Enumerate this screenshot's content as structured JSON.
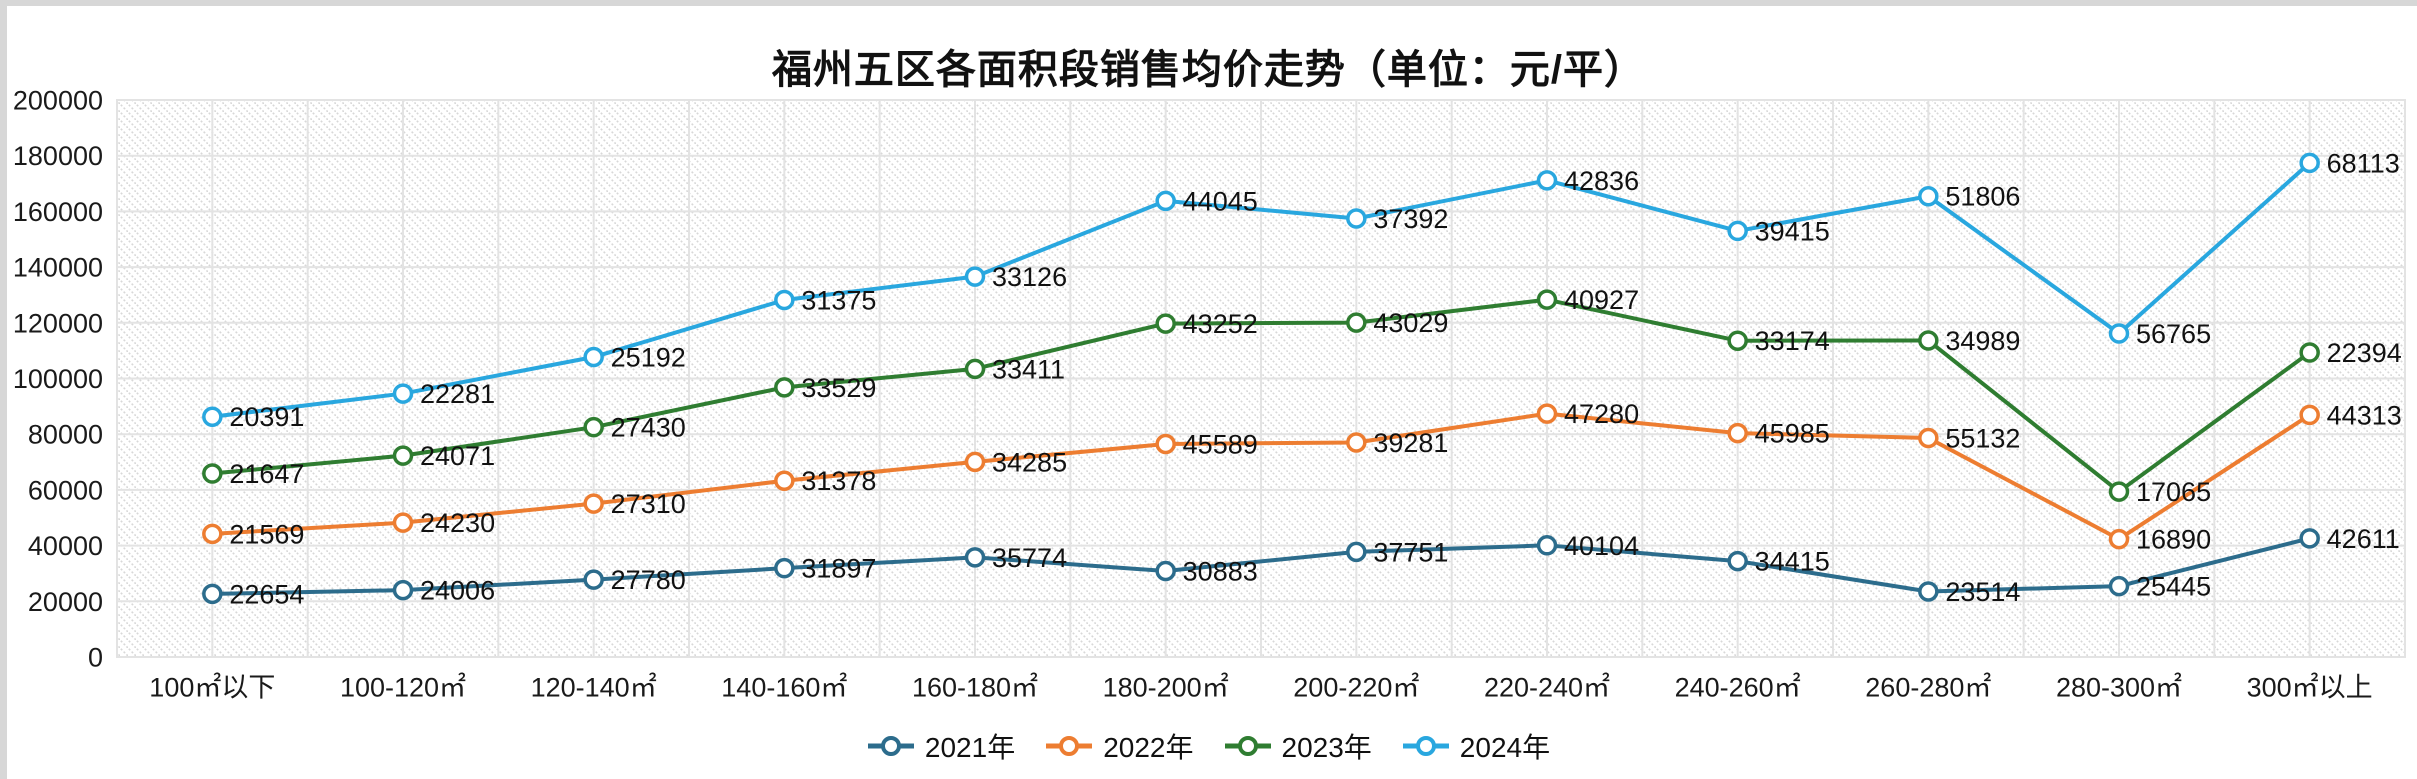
{
  "title": "福州五区各面积段销售均价走势（单位：元/平）",
  "legend": {
    "items": [
      "2021年",
      "2022年",
      "2023年",
      "2024年"
    ]
  },
  "colors": {
    "series_2021": "#2C6C8C",
    "series_2022": "#ED7D31",
    "series_2023": "#2F7D31",
    "series_2024": "#29A7DF",
    "gridline": "#E3E3E3",
    "hatch": "#D8D8D8",
    "axis_text": "#1A1A1A",
    "label_text": "#111111"
  },
  "chart_data": {
    "type": "line",
    "stacked": true,
    "marker": "open-circle",
    "data_labels": true,
    "grid": true,
    "legend_position": "bottom",
    "title": "福州五区各面积段销售均价走势（单位：元/平）",
    "xlabel": "",
    "ylabel": "",
    "ylim": [
      0,
      200000
    ],
    "y_tick_interval": 20000,
    "y_ticks": [
      "0",
      "20000",
      "40000",
      "60000",
      "80000",
      "100000",
      "120000",
      "140000",
      "160000",
      "180000",
      "200000"
    ],
    "categories": [
      "100㎡以下",
      "100-120㎡",
      "120-140㎡",
      "140-160㎡",
      "160-180㎡",
      "180-200㎡",
      "200-220㎡",
      "220-240㎡",
      "240-260㎡",
      "260-280㎡",
      "280-300㎡",
      "300㎡以上"
    ],
    "series": [
      {
        "name": "2021年",
        "color": "#2C6C8C",
        "values": [
          22654,
          24006,
          27780,
          31897,
          35774,
          30883,
          37751,
          40104,
          34415,
          23514,
          25445,
          42611
        ]
      },
      {
        "name": "2022年",
        "color": "#ED7D31",
        "values": [
          21569,
          24230,
          27310,
          31378,
          34285,
          45589,
          39281,
          47280,
          45985,
          55132,
          16890,
          44313
        ]
      },
      {
        "name": "2023年",
        "color": "#2F7D31",
        "values": [
          21647,
          24071,
          27430,
          33529,
          33411,
          43252,
          43029,
          40927,
          33174,
          34989,
          17065,
          22394
        ]
      },
      {
        "name": "2024年",
        "color": "#29A7DF",
        "values": [
          20391,
          22281,
          25192,
          31375,
          33126,
          44045,
          37392,
          42836,
          39415,
          51806,
          56765,
          68113
        ]
      }
    ]
  }
}
